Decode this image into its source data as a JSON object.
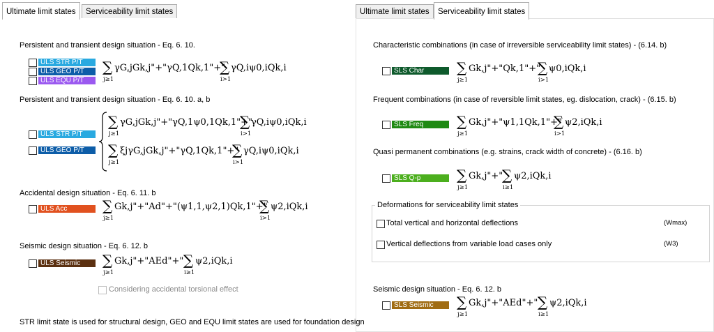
{
  "tabs_left": {
    "ultimate": "Ultimate limit states",
    "serviceability": "Serviceability limit states"
  },
  "tabs_right": {
    "ultimate": "Ultimate limit states",
    "serviceability": "Serviceability limit states"
  },
  "left": {
    "persistent_heading": "Persistent and transient design situation - Eq. 6. 10.",
    "persistent_ab_heading": "Persistent and transient design situation - Eq. 6. 10. a, b",
    "accidental_heading": "Accidental design situation - Eq. 6. 11. b",
    "seismic_heading": "Seismic design situation - Eq. 6. 12. b",
    "torsional_label": "Considering accidental torsional effect",
    "footer": "STR limit state is used for structural design, GEO and EQU limit states are used for foundation design",
    "tags": {
      "str": "ULS STR P/T",
      "geo": "ULS GEO P/T",
      "equ": "ULS EQU P/T",
      "str2": "ULS STR P/T",
      "geo2": "ULS GEO P/T",
      "acc": "ULS Acc",
      "seis": "ULS Seismic"
    }
  },
  "right": {
    "characteristic_heading": "Characteristic combinations (in case of irreversible serviceability limit states) - (6.14. b)",
    "frequent_heading": "Frequent combinations (in case of reversible limit states, eg. dislocation, crack) - (6.15. b)",
    "quasi_heading": "Quasi permanent combinations (e.g. strains, crack width of concrete) - (6.16. b)",
    "deformations_legend": "Deformations for serviceability limit states",
    "total_deflection_label": "Total vertical and horizontal deflections",
    "total_deflection_unit": "(Wmax)",
    "variable_deflection_label": "Vertical deflections from variable load cases only",
    "variable_deflection_unit": "(W3)",
    "seismic_heading": "Seismic design situation - Eq. 6. 12. b",
    "tags": {
      "char": "SLS Char",
      "freq": "SLS Freq",
      "qp": "SLS Q-p",
      "seis": "SLS Seismic"
    }
  },
  "math": {
    "sum": "∑",
    "j1": "j≥1",
    "i1": "i>1",
    "i1b": "i≥1",
    "f1a": "γG,jGk,j\"+\"γQ,1Qk,1\"+\"",
    "f1b": "γQ,iψ0,iQk,i",
    "f2a": "γG,jGk,j\"+\"γQ,1ψ0,1Qk,1\"+\"",
    "f2b": "γQ,iψ0,iQk,i",
    "f3a": "ξjγG,jGk,j\"+\"γQ,1Qk,1\"+\"",
    "f3b": "γQ,iψ0,iQk,i",
    "f4a": "Gk,j\"+\"Ad\"+\"(ψ1,1,ψ2,1)Qk,1\"+\"",
    "f4b": "ψ2,iQk,i",
    "f5a": "Gk,j\"+\"AEd\"+\"",
    "f5b": "ψ2,iQk,i",
    "r1a": "Gk,j\"+\"Qk,1\"+\"",
    "r1b": "ψ0,iQk,i",
    "r2a": "Gk,j\"+\"ψ1,1Qk,1\"+\"",
    "r2b": "ψ2,iQk,i",
    "r3a": "Gk,j\"+\"",
    "r3b": "ψ2,iQk,i",
    "r4a": "Gk,j\"+\"AEd\"+\"",
    "r4b": "ψ2,iQk,i"
  },
  "colors": {
    "uls_str": "#29a9e0",
    "uls_geo": "#0d5da8",
    "uls_equ": "#9b59f0",
    "uls_acc": "#e1511f",
    "uls_seis": "#5b3010",
    "sls_char": "#0e5a2c",
    "sls_freq": "#1f8a13",
    "sls_qp": "#4caf1e",
    "sls_seis": "#a06c13"
  }
}
